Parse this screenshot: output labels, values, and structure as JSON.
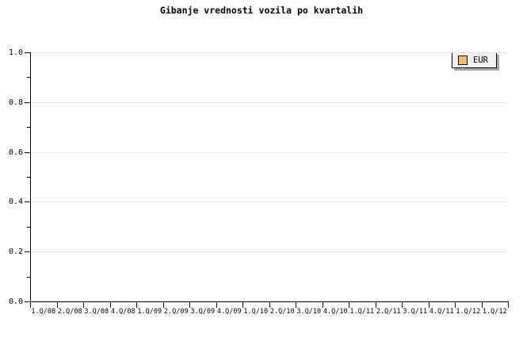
{
  "title": "Gibanje vrednosti vozila po kvartalih",
  "legend": {
    "label": "EUR",
    "swatch_color": "#F9BA61",
    "background": "#F0F0F0",
    "border_color": "#000000",
    "shadow_color": "#AAAAAA",
    "position": "top-right"
  },
  "colors": {
    "page_background": "#FFFFFF",
    "axis": "#000000",
    "grid": "#E6E6E6",
    "text": "#000000"
  },
  "chart_data": {
    "type": "line",
    "title": "Gibanje vrednosti vozila po kvartalih",
    "categories": [
      "1.Q/08",
      "2.Q/08",
      "3.Q/08",
      "4.Q/08",
      "1.Q/09",
      "2.Q/09",
      "3.Q/09",
      "4.Q/09",
      "1.Q/10",
      "2.Q/10",
      "3.Q/10",
      "4.Q/10",
      "1.Q/11",
      "2.Q/11",
      "3.Q/11",
      "4.Q/11",
      "1.Q/12",
      "1.Q/12"
    ],
    "series": [
      {
        "name": "EUR",
        "values": []
      }
    ],
    "empty_plot": true,
    "xlabel": "",
    "ylabel": "",
    "ylim": [
      0.0,
      1.0
    ],
    "yticks": [
      0.0,
      0.2,
      0.4,
      0.6,
      0.8,
      1.0
    ],
    "ytick_labels": [
      "0.0",
      "0.2",
      "0.4",
      "0.6",
      "0.8",
      "1.0"
    ],
    "minor_yticks": [
      0.1,
      0.3,
      0.5,
      0.7,
      0.9
    ],
    "grid": "horizontal-major-only",
    "legend_position": "top-right"
  }
}
